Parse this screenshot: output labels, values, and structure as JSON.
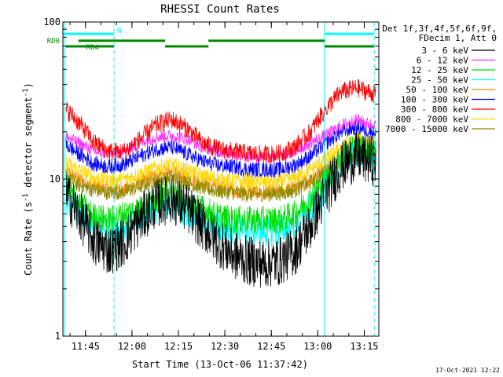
{
  "chart_data": {
    "type": "line",
    "title": "RHESSI Count Rates",
    "xlabel": "Start Time (13-Oct-06 11:37:42)",
    "ylabel": "Count Rate (s",
    "ylabel_sup": "-1",
    "ylabel_suffix": " detector segment",
    "ylabel_sup2": "-1",
    "ylabel_close": ")",
    "yscale": "log",
    "ylim": [
      1,
      100
    ],
    "xlim_min": [
      0,
      102
    ],
    "x_unit": "minutes after 11:37:42",
    "x_ticks": [
      {
        "label": "11:45",
        "t": 7.3
      },
      {
        "label": "12:00",
        "t": 22.3
      },
      {
        "label": "12:15",
        "t": 37.3
      },
      {
        "label": "12:30",
        "t": 52.3
      },
      {
        "label": "12:45",
        "t": 67.3
      },
      {
        "label": "13:00",
        "t": 82.3
      },
      {
        "label": "13:15",
        "t": 97.3
      }
    ],
    "y_ticks": [
      {
        "label": "1",
        "v": 1
      },
      {
        "label": "10",
        "v": 10
      },
      {
        "label": "100",
        "v": 100
      }
    ],
    "legend_header": [
      "Det 1f,3f,4f,5f,6f,9f,",
      "FDecim 1, Att 0"
    ],
    "legend_placement": "right",
    "x": [
      0,
      5,
      10,
      15,
      20,
      25,
      30,
      35,
      40,
      45,
      50,
      55,
      60,
      65,
      70,
      75,
      80,
      85,
      90,
      95,
      100
    ],
    "series": [
      {
        "name": "3 - 6 keV",
        "color": "#000000",
        "values": [
          8.5,
          6,
          4,
          3.5,
          4,
          5.5,
          7,
          7.5,
          6.5,
          5,
          4,
          3.3,
          3,
          2.9,
          3,
          3.5,
          5,
          8,
          12,
          14,
          13
        ]
      },
      {
        "name": "6 - 12 keV",
        "color": "#ff30ff",
        "values": [
          19,
          17,
          15,
          14.5,
          15,
          17,
          18.5,
          19,
          18,
          16,
          15,
          14.5,
          14,
          14,
          14,
          15,
          17,
          19,
          22,
          24,
          22
        ]
      },
      {
        "name": "12 - 25 keV",
        "color": "#00dd00",
        "values": [
          9.5,
          7,
          5.8,
          5.5,
          6,
          6.5,
          7.5,
          8,
          7,
          6.5,
          5.8,
          5.5,
          5.5,
          5.5,
          5.5,
          6,
          7.5,
          10,
          14,
          16,
          14.5
        ]
      },
      {
        "name": "25 - 50 keV",
        "color": "#00ffff",
        "values": [
          8,
          6,
          5,
          4.8,
          5,
          5.8,
          6.5,
          7,
          6.2,
          5.5,
          5,
          4.8,
          4.7,
          4.6,
          4.7,
          5,
          6.5,
          9,
          13,
          15,
          14
        ]
      },
      {
        "name": "50 - 100 keV",
        "color": "#ff8c00",
        "values": [
          11.5,
          10,
          9,
          8.5,
          8.5,
          9.5,
          10.5,
          11,
          10.2,
          9.5,
          9,
          8.5,
          8.3,
          8.2,
          8.3,
          8.8,
          10,
          12,
          15,
          17,
          15.5
        ]
      },
      {
        "name": "100 - 300 keV",
        "color": "#0000ff",
        "values": [
          17,
          14.5,
          12.5,
          12,
          12.5,
          14,
          15.5,
          16,
          14.5,
          13,
          12.2,
          12,
          11.5,
          11.5,
          11.5,
          12.3,
          14,
          17,
          20,
          21.5,
          20
        ]
      },
      {
        "name": "300 - 800 keV",
        "color": "#ff0000",
        "values": [
          29,
          23,
          17,
          15,
          15,
          18,
          22,
          24,
          21,
          17,
          15.5,
          15,
          14.5,
          14.3,
          14.5,
          16,
          20,
          28,
          36,
          38,
          35
        ]
      },
      {
        "name": "800 - 7000 keV",
        "color": "#ffd700",
        "values": [
          13,
          11.5,
          10.2,
          9.8,
          10,
          10.8,
          11.8,
          12.3,
          11.5,
          10.5,
          10,
          9.8,
          9.6,
          9.5,
          9.6,
          10.2,
          11.5,
          13.5,
          16,
          18,
          17
        ]
      },
      {
        "name": "7000 - 15000 keV",
        "color": "#8b8b00",
        "values": [
          10.5,
          9.2,
          8.5,
          8.2,
          8.3,
          9,
          9.8,
          10.2,
          9.5,
          8.8,
          8.4,
          8.2,
          8,
          8,
          8.1,
          8.5,
          9.5,
          11,
          13,
          14.5,
          13.5
        ]
      }
    ],
    "vertical_markers": [
      {
        "t": 0.5,
        "style": "solid",
        "color": "#00ffff"
      },
      {
        "t": 16.5,
        "style": "dashed",
        "color": "#00ffff"
      },
      {
        "t": 84.5,
        "style": "solid",
        "color": "#00ffff"
      },
      {
        "t": 100.5,
        "style": "dashed",
        "color": "#00ffff"
      }
    ],
    "bar_annotations": [
      {
        "label": "N",
        "color": "#00ffff",
        "level": 84,
        "segments": [
          [
            0,
            16.5
          ],
          [
            84.5,
            100.5
          ]
        ]
      },
      {
        "label": "RD0",
        "color": "#008800",
        "level": 76,
        "segments": [
          [
            5,
            33
          ],
          [
            47,
            84.5
          ]
        ]
      },
      {
        "label": "RD4",
        "color": "#008800",
        "level": 70,
        "segments": [
          [
            1,
            16.5
          ],
          [
            33,
            47
          ],
          [
            84.5,
            100.5
          ]
        ]
      }
    ],
    "footer_date": "17-Oct-2021 12:22"
  }
}
